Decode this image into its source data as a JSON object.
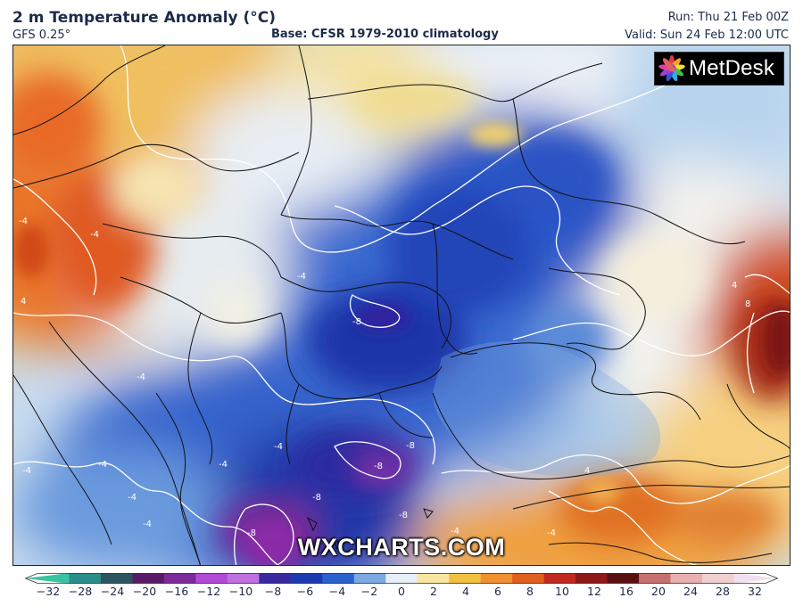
{
  "header": {
    "title": "2 m Temperature Anomaly (°C)",
    "model": "GFS 0.25°",
    "base": "Base: CFSR 1979-2010 climatology",
    "run": "Run: Thu 21 Feb 00Z",
    "valid": "Valid: Sun 24 Feb 12:00 UTC"
  },
  "logo": {
    "brand": "MetDesk",
    "icon": "flower-logo-icon"
  },
  "watermark": "WXCHARTS.COM",
  "contour_labels": [
    "-4",
    "-4",
    "-4",
    "-4",
    "-4",
    "-4",
    "-4",
    "-4",
    "-4",
    "-4",
    "-4",
    "-4",
    "-8",
    "-8",
    "-8",
    "-8",
    "-8",
    "-8",
    "4",
    "4",
    "4",
    "8"
  ],
  "colorbar": {
    "ticks": [
      "−32",
      "−28",
      "−24",
      "−20",
      "−16",
      "−12",
      "−10",
      "−8",
      "−6",
      "−4",
      "−2",
      "0",
      "2",
      "4",
      "6",
      "8",
      "10",
      "12",
      "16",
      "20",
      "24",
      "28",
      "32"
    ],
    "colors": [
      "#3ac3a0",
      "#2a8f8a",
      "#2c5560",
      "#5a1a6a",
      "#7e2a9a",
      "#b24ad8",
      "#c070e0",
      "#3a2aa0",
      "#1c3ab0",
      "#2a62d0",
      "#7aaadf",
      "#e6eef6",
      "#f6e6a0",
      "#f0c040",
      "#f09030",
      "#e06020",
      "#c02a20",
      "#901818",
      "#5a1010",
      "#c87070",
      "#e8b0b0",
      "#f0d0d0",
      "#f0e0f0"
    ]
  }
}
